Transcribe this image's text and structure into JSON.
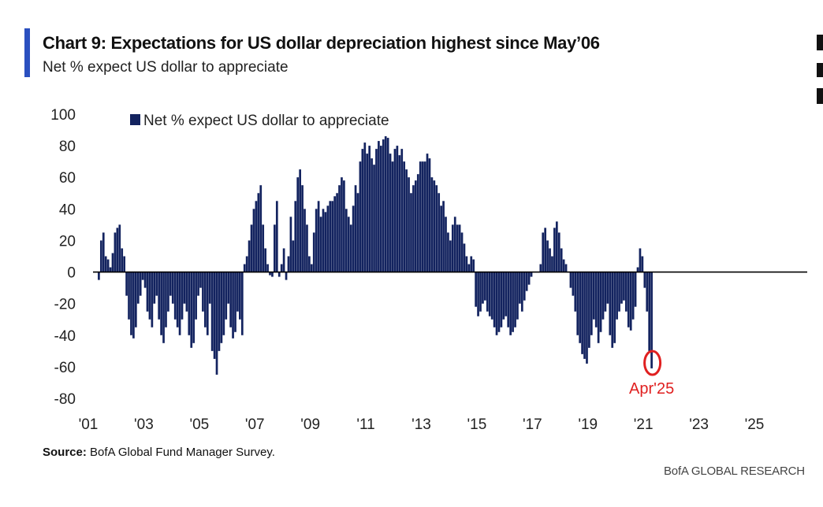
{
  "header": {
    "title": "Chart 9: Expectations for US dollar depreciation highest since May’06",
    "subtitle": "Net % expect US dollar to appreciate"
  },
  "footer": {
    "source_label": "Source:",
    "source_text": "BofA Global Fund Manager Survey.",
    "brand": "BofA GLOBAL RESEARCH"
  },
  "colors": {
    "bar": "#13235f",
    "accent": "#2a4fbf",
    "highlight": "#e02020"
  },
  "chart_data": {
    "type": "bar",
    "title": "",
    "xlabel": "",
    "ylabel": "",
    "ylim": [
      -80,
      100
    ],
    "yticks": [
      100,
      80,
      60,
      40,
      20,
      0,
      -20,
      -40,
      -60,
      -80
    ],
    "xticks": [
      "'01",
      "'03",
      "'05",
      "'07",
      "'09",
      "'11",
      "'13",
      "'15",
      "'17",
      "'19",
      "'21",
      "'23",
      "'25"
    ],
    "legend": {
      "label": "Net % expect US dollar to appreciate",
      "position": "top-left"
    },
    "grid": false,
    "annotation": {
      "label": "Apr'25",
      "value": -61
    },
    "series": [
      {
        "name": "Net % expect US dollar to appreciate",
        "start": "2001-05",
        "frequency": "monthly",
        "values": [
          -5,
          20,
          25,
          10,
          8,
          3,
          12,
          25,
          28,
          30,
          15,
          10,
          -15,
          -30,
          -40,
          -42,
          -35,
          -20,
          -15,
          -5,
          -10,
          -25,
          -30,
          -35,
          -20,
          -15,
          -30,
          -40,
          -45,
          -35,
          -25,
          -15,
          -20,
          -30,
          -35,
          -40,
          -30,
          -20,
          -25,
          -40,
          -48,
          -45,
          -30,
          -15,
          -10,
          -25,
          -35,
          -40,
          -20,
          -50,
          -55,
          -65,
          -50,
          -45,
          -40,
          -30,
          -20,
          -35,
          -42,
          -38,
          -25,
          -30,
          -40,
          5,
          10,
          20,
          30,
          40,
          45,
          50,
          55,
          30,
          15,
          5,
          -2,
          -3,
          30,
          45,
          -3,
          5,
          15,
          -5,
          10,
          35,
          20,
          45,
          60,
          65,
          55,
          40,
          30,
          10,
          5,
          25,
          40,
          45,
          35,
          40,
          38,
          42,
          45,
          45,
          48,
          50,
          55,
          60,
          58,
          40,
          35,
          30,
          42,
          55,
          50,
          70,
          78,
          82,
          75,
          80,
          72,
          68,
          78,
          83,
          80,
          84,
          86,
          85,
          75,
          70,
          78,
          80,
          74,
          78,
          70,
          65,
          60,
          50,
          55,
          58,
          62,
          70,
          70,
          70,
          75,
          72,
          60,
          58,
          55,
          50,
          42,
          45,
          35,
          25,
          20,
          30,
          35,
          30,
          30,
          25,
          18,
          10,
          5,
          10,
          8,
          -22,
          -28,
          -25,
          -20,
          -18,
          -25,
          -28,
          -30,
          -35,
          -40,
          -38,
          -35,
          -30,
          -28,
          -35,
          -40,
          -38,
          -35,
          -30,
          -20,
          -25,
          -18,
          -12,
          -8,
          -3,
          0,
          0,
          0,
          5,
          25,
          28,
          20,
          15,
          10,
          28,
          32,
          25,
          15,
          8,
          5,
          0,
          -10,
          -15,
          -25,
          -40,
          -45,
          -52,
          -55,
          -58,
          -48,
          -40,
          -30,
          -35,
          -45,
          -38,
          -30,
          -25,
          -20,
          -40,
          -48,
          -45,
          -30,
          -25,
          -20,
          -18,
          -25,
          -35,
          -37,
          -30,
          -22,
          3,
          15,
          10,
          -10,
          -25,
          -50,
          -61
        ]
      }
    ]
  }
}
